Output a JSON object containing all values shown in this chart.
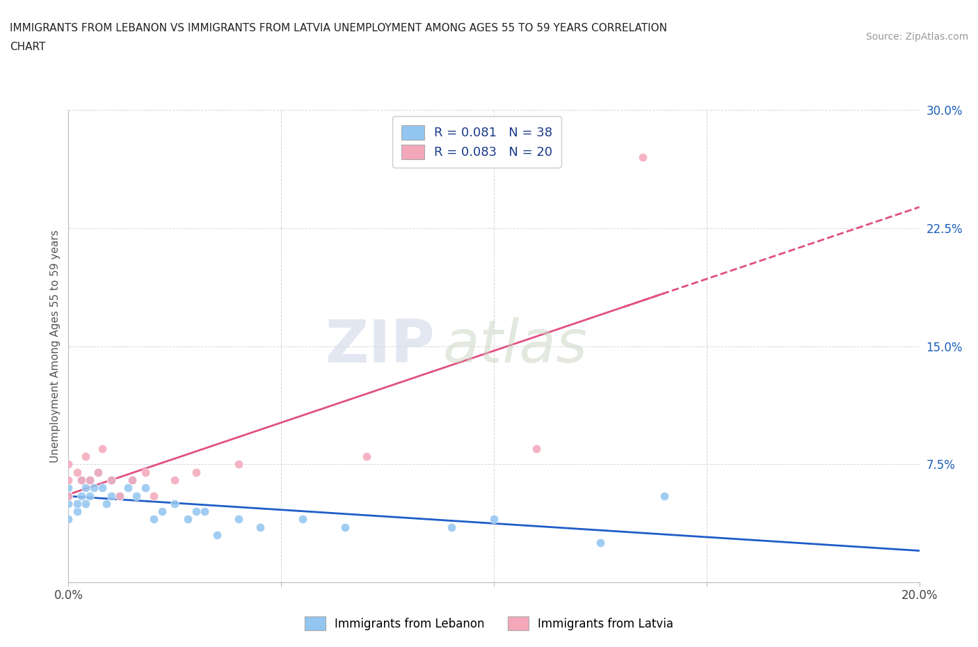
{
  "title_line1": "IMMIGRANTS FROM LEBANON VS IMMIGRANTS FROM LATVIA UNEMPLOYMENT AMONG AGES 55 TO 59 YEARS CORRELATION",
  "title_line2": "CHART",
  "source": "Source: ZipAtlas.com",
  "ylabel": "Unemployment Among Ages 55 to 59 years",
  "xlim": [
    0.0,
    0.2
  ],
  "ylim": [
    0.0,
    0.3
  ],
  "xticks": [
    0.0,
    0.05,
    0.1,
    0.15,
    0.2
  ],
  "xtick_labels": [
    "0.0%",
    "",
    "",
    "",
    "20.0%"
  ],
  "yticks": [
    0.0,
    0.075,
    0.15,
    0.225,
    0.3
  ],
  "ytick_labels": [
    "",
    "7.5%",
    "15.0%",
    "22.5%",
    "30.0%"
  ],
  "lebanon_color": "#92C5F0",
  "latvia_color": "#F4A7B9",
  "lebanon_R": 0.081,
  "lebanon_N": 38,
  "latvia_R": 0.083,
  "latvia_N": 20,
  "lebanon_line_color": "#1F5DC8",
  "latvia_line_color": "#E05080",
  "watermark_zip": "ZIP",
  "watermark_atlas": "atlas",
  "legend_label_lebanon": "Immigrants from Lebanon",
  "legend_label_latvia": "Immigrants from Latvia",
  "lebanon_scatter_x": [
    0.0,
    0.0,
    0.0,
    0.0,
    0.002,
    0.002,
    0.003,
    0.003,
    0.004,
    0.004,
    0.005,
    0.005,
    0.006,
    0.007,
    0.008,
    0.009,
    0.01,
    0.01,
    0.012,
    0.014,
    0.015,
    0.016,
    0.018,
    0.02,
    0.022,
    0.025,
    0.028,
    0.03,
    0.032,
    0.035,
    0.04,
    0.045,
    0.055,
    0.065,
    0.09,
    0.1,
    0.125,
    0.14
  ],
  "lebanon_scatter_y": [
    0.04,
    0.05,
    0.055,
    0.06,
    0.045,
    0.05,
    0.055,
    0.065,
    0.05,
    0.06,
    0.055,
    0.065,
    0.06,
    0.07,
    0.06,
    0.05,
    0.055,
    0.065,
    0.055,
    0.06,
    0.065,
    0.055,
    0.06,
    0.04,
    0.045,
    0.05,
    0.04,
    0.045,
    0.045,
    0.03,
    0.04,
    0.035,
    0.04,
    0.035,
    0.035,
    0.04,
    0.025,
    0.055
  ],
  "latvia_scatter_x": [
    0.0,
    0.0,
    0.0,
    0.002,
    0.003,
    0.004,
    0.005,
    0.007,
    0.008,
    0.01,
    0.012,
    0.015,
    0.018,
    0.02,
    0.025,
    0.03,
    0.04,
    0.07,
    0.11,
    0.135
  ],
  "latvia_scatter_y": [
    0.055,
    0.065,
    0.075,
    0.07,
    0.065,
    0.08,
    0.065,
    0.07,
    0.085,
    0.065,
    0.055,
    0.065,
    0.07,
    0.055,
    0.065,
    0.07,
    0.075,
    0.08,
    0.085,
    0.27
  ]
}
